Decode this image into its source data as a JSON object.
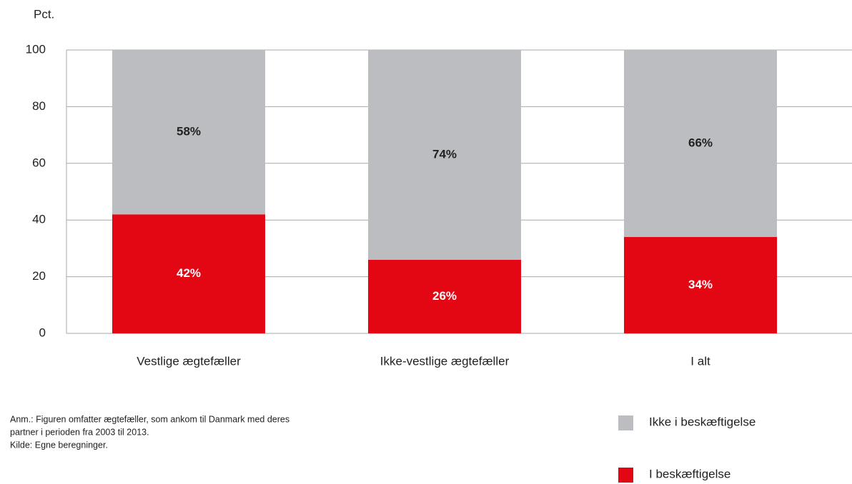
{
  "chart_data": {
    "type": "stacked_bar",
    "y_axis_label": "Pct.",
    "categories": [
      "Vestlige ægtefæller",
      "Ikke-vestlige ægtefæller",
      "I alt"
    ],
    "series": [
      {
        "name": "I beskæftigelse",
        "color": "#e30613",
        "values": [
          42,
          26,
          34
        ],
        "value_labels": [
          "42%",
          "26%",
          "34%"
        ],
        "label_color": "#ffffff"
      },
      {
        "name": "Ikke i beskæftigelse",
        "color": "#bcbdc0",
        "values": [
          58,
          74,
          66
        ],
        "value_labels": [
          "58%",
          "74%",
          "66%"
        ],
        "label_color": "#222222"
      }
    ],
    "ylim": [
      0,
      100
    ],
    "yticks": [
      0,
      20,
      40,
      60,
      80,
      100
    ],
    "grid": true,
    "notes": [
      "Anm.: Figuren omfatter ægtefæller, som ankom til Danmark med deres",
      "partner i perioden fra 2003 til 2013.",
      "Kilde: Egne beregninger."
    ]
  }
}
